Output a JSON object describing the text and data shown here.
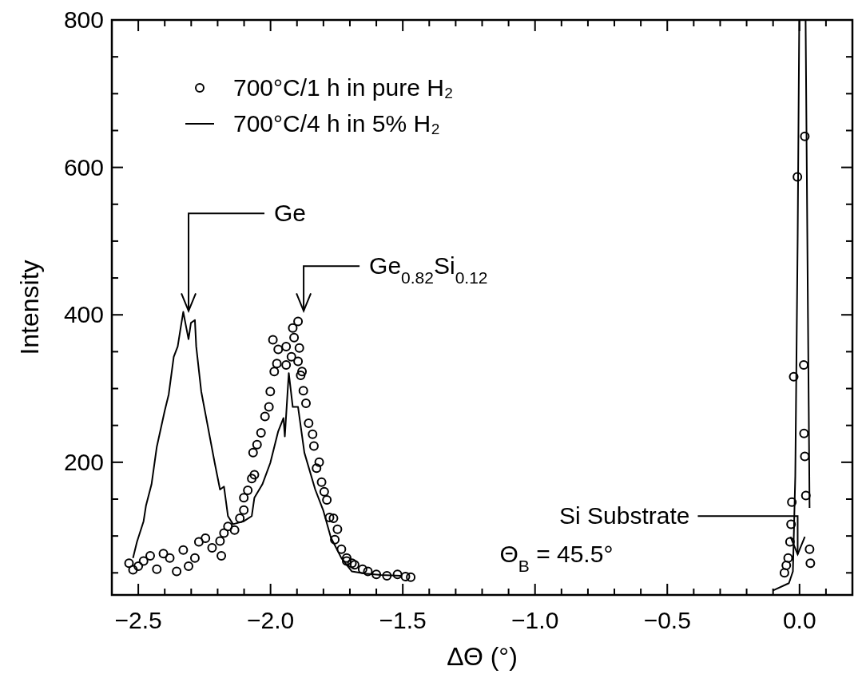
{
  "chart_data": {
    "type": "line",
    "xlabel": "ΔΘ  (°)",
    "ylabel": "Intensity",
    "xlim": [
      -2.6,
      0.2
    ],
    "ylim": [
      20,
      800
    ],
    "xticks": [
      {
        "value": -2.5,
        "label": "−2.5"
      },
      {
        "value": -2.4,
        "label": null
      },
      {
        "value": -2.3,
        "label": null
      },
      {
        "value": -2.2,
        "label": null
      },
      {
        "value": -2.1,
        "label": null
      },
      {
        "value": -2.0,
        "label": "−2.0"
      },
      {
        "value": -1.9,
        "label": null
      },
      {
        "value": -1.8,
        "label": null
      },
      {
        "value": -1.7,
        "label": null
      },
      {
        "value": -1.6,
        "label": null
      },
      {
        "value": -1.5,
        "label": "−1.5"
      },
      {
        "value": -1.4,
        "label": null
      },
      {
        "value": -1.3,
        "label": null
      },
      {
        "value": -1.2,
        "label": null
      },
      {
        "value": -1.1,
        "label": null
      },
      {
        "value": -1.0,
        "label": "−1.0"
      },
      {
        "value": -0.9,
        "label": null
      },
      {
        "value": -0.8,
        "label": null
      },
      {
        "value": -0.7,
        "label": null
      },
      {
        "value": -0.6,
        "label": null
      },
      {
        "value": -0.5,
        "label": "−0.5"
      },
      {
        "value": -0.4,
        "label": null
      },
      {
        "value": -0.3,
        "label": null
      },
      {
        "value": -0.2,
        "label": null
      },
      {
        "value": -0.1,
        "label": null
      },
      {
        "value": 0.0,
        "label": "0.0"
      },
      {
        "value": 0.1,
        "label": null
      }
    ],
    "yticks": [
      {
        "value": 50,
        "label": null
      },
      {
        "value": 100,
        "label": null
      },
      {
        "value": 150,
        "label": null
      },
      200,
      {
        "value": 250,
        "label": null
      },
      {
        "value": 300,
        "label": null
      },
      {
        "value": 350,
        "label": null
      },
      400,
      {
        "value": 450,
        "label": null
      },
      {
        "value": 500,
        "label": null
      },
      {
        "value": 550,
        "label": null
      },
      600,
      {
        "value": 650,
        "label": null
      },
      {
        "value": 700,
        "label": null
      },
      {
        "value": 750,
        "label": null
      },
      800
    ],
    "legend": "top left",
    "grid": false,
    "series": [
      {
        "name": "700°C/1 h in pure H₂",
        "type": "scatter",
        "marker": "circle",
        "color": "#000000",
        "x": [
          -2.535,
          -2.52,
          -2.5,
          -2.48,
          -2.455,
          -2.43,
          -2.405,
          -2.381,
          -2.355,
          -2.33,
          -2.31,
          -2.286,
          -2.271,
          -2.246,
          -2.221,
          -2.186,
          -2.191,
          -2.176,
          -2.161,
          -2.136,
          -2.116,
          -2.101,
          -2.101,
          -2.086,
          -2.071,
          -2.061,
          -2.066,
          -2.051,
          -2.036,
          -2.021,
          -2.006,
          -2.001,
          -1.986,
          -1.976,
          -1.991,
          -1.971,
          -1.941,
          -1.921,
          -1.941,
          -1.911,
          -1.916,
          -1.896,
          -1.891,
          -1.896,
          -1.881,
          -1.886,
          -1.876,
          -1.866,
          -1.856,
          -1.841,
          -1.836,
          -1.816,
          -1.826,
          -1.807,
          -1.797,
          -1.787,
          -1.777,
          -1.762,
          -1.747,
          -1.757,
          -1.732,
          -1.712,
          -1.692,
          -1.712,
          -1.682,
          -1.652,
          -1.632,
          -1.6,
          -1.56,
          -1.52,
          -1.49,
          -1.47,
          -0.057,
          -0.05,
          -0.043,
          -0.036,
          -0.032,
          -0.029,
          -0.022,
          -0.008,
          0.02,
          0.016,
          0.017,
          0.02,
          0.024,
          0.038,
          0.041
        ],
        "values": [
          63,
          54,
          59,
          66,
          73,
          55,
          76,
          70,
          52,
          81,
          59,
          70,
          92,
          97,
          84,
          73,
          93,
          104,
          113,
          108,
          124,
          135,
          152,
          162,
          178,
          183,
          213,
          224,
          240,
          262,
          275,
          296,
          323,
          334,
          366,
          353,
          357,
          343,
          332,
          369,
          382,
          391,
          355,
          337,
          323,
          318,
          297,
          280,
          253,
          238,
          222,
          200,
          192,
          173,
          160,
          149,
          125,
          124,
          109,
          95,
          82,
          70,
          63,
          66,
          61,
          55,
          52,
          48,
          46,
          48,
          45,
          44,
          50,
          60,
          70,
          92,
          116,
          146,
          316,
          587,
          642,
          332,
          239,
          208,
          155,
          82,
          63
        ]
      },
      {
        "name": "700°C/4 h in 5% H₂",
        "line_style": "solid",
        "color": "#000000",
        "x": [
          -2.52,
          -2.505,
          -2.48,
          -2.471,
          -2.45,
          -2.43,
          -2.4,
          -2.385,
          -2.366,
          -2.351,
          -2.34,
          -2.33,
          -2.322,
          -2.31,
          -2.301,
          -2.286,
          -2.281,
          -2.262,
          -2.241,
          -2.211,
          -2.191,
          -2.176,
          -2.161,
          -2.142,
          -2.101,
          -2.071,
          -2.061,
          -2.031,
          -2.001,
          -1.971,
          -1.951,
          -1.946,
          -1.931,
          -1.916,
          -1.896,
          -1.872,
          -1.831,
          -1.801,
          -1.772,
          -1.732,
          -1.693,
          -1.642,
          -1.582,
          -1.507,
          -1.0,
          -0.1,
          -0.04,
          -0.025,
          -0.016,
          -0.007,
          -0.001,
          0.023,
          0.032,
          0.038
        ],
        "values": [
          70,
          92,
          120,
          141,
          170,
          221,
          270,
          292,
          343,
          357,
          382,
          404,
          389,
          367,
          389,
          393,
          357,
          296,
          256,
          199,
          163,
          167,
          127,
          116,
          120,
          127,
          152,
          170,
          199,
          242,
          260,
          235,
          321,
          275,
          275,
          213,
          163,
          135,
          98,
          70,
          52,
          49,
          47,
          46,
          null,
          26,
          36,
          52,
          181,
          504,
          800,
          800,
          396,
          138
        ]
      }
    ],
    "annotations": [
      "Ge",
      "Ge$_{0.82}$Si$_{0.12}$",
      {
        "text": "Si Substrate",
        "x": -0.007,
        "y": 75
      },
      "Θ$_{B}$  =  45.5°"
    ]
  }
}
